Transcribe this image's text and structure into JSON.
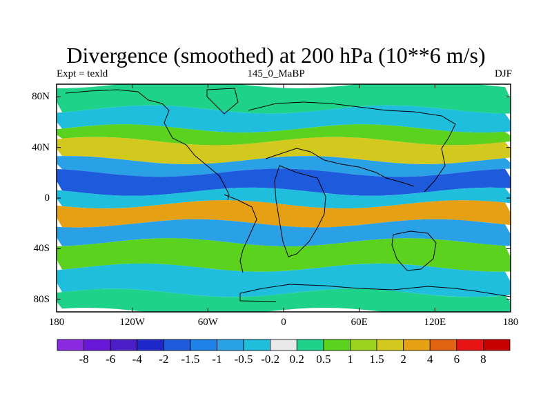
{
  "map": {
    "title": "Divergence (smoothed) at 200 hPa (10**6 m/s)",
    "left_label": "Expt = texld",
    "center_label": "145_0_MaBP",
    "right_label": "DJF",
    "projection": "cylindrical equidistant",
    "lon_range": [
      -180,
      180
    ],
    "lat_range": [
      -90,
      90
    ],
    "lat_tick_labels": [
      "80N",
      "40N",
      "0",
      "40S",
      "80S"
    ],
    "lat_tick_values": [
      80,
      40,
      0,
      -40,
      -80
    ],
    "lon_tick_labels": [
      "180",
      "120W",
      "60W",
      "0",
      "60E",
      "120E",
      "180"
    ],
    "lon_tick_values": [
      -180,
      -120,
      -60,
      0,
      60,
      120,
      180
    ]
  },
  "colorbar": {
    "levels": [
      "-8",
      "-6",
      "-4",
      "-2",
      "-1.5",
      "-1",
      "-0.5",
      "-0.2",
      "0.2",
      "0.5",
      "1",
      "1.5",
      "2",
      "4",
      "6",
      "8"
    ],
    "colors": [
      "#8a2be2",
      "#6a18d8",
      "#4b1ec8",
      "#1e28c8",
      "#1e5adc",
      "#1e82e6",
      "#2aa0e6",
      "#1ebedc",
      "#e8e8e8",
      "#1ed28a",
      "#5ad21e",
      "#9ad21e",
      "#d2c81e",
      "#e6a014",
      "#e06414",
      "#e61414",
      "#c80000"
    ]
  },
  "field_bands": [
    {
      "lat_from": 90,
      "lat_to": 70,
      "level": "0.2"
    },
    {
      "lat_from": 70,
      "lat_to": 55,
      "level": "-0.5"
    },
    {
      "lat_from": 55,
      "lat_to": 45,
      "level": "0.5"
    },
    {
      "lat_from": 45,
      "lat_to": 30,
      "level": "1.5"
    },
    {
      "lat_from": 30,
      "lat_to": 20,
      "level": "-1"
    },
    {
      "lat_from": 20,
      "lat_to": 5,
      "level": "-2"
    },
    {
      "lat_from": 5,
      "lat_to": -5,
      "level": "-0.5"
    },
    {
      "lat_from": -5,
      "lat_to": -20,
      "level": "2"
    },
    {
      "lat_from": -20,
      "lat_to": -35,
      "level": "-1"
    },
    {
      "lat_from": -35,
      "lat_to": -55,
      "level": "0.5"
    },
    {
      "lat_from": -55,
      "lat_to": -75,
      "level": "-0.5"
    },
    {
      "lat_from": -75,
      "lat_to": -90,
      "level": "0.2"
    }
  ]
}
